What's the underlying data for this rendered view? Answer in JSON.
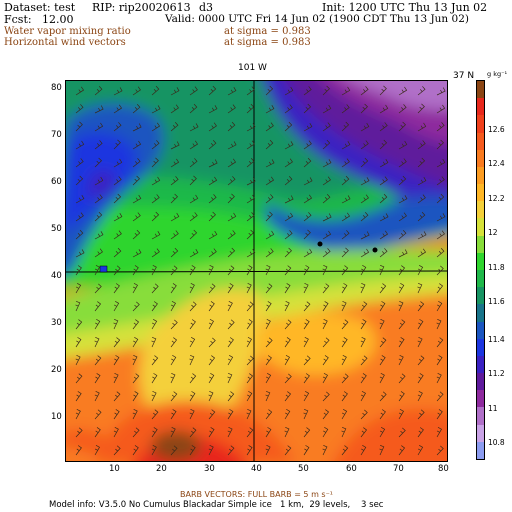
{
  "header": {
    "dataset": "Dataset: test",
    "rip": "RIP: rip20020613",
    "domain": "d3",
    "init": "Init: 1200 UTC Thu 13 Jun 02",
    "fcst_label": "Fcst:",
    "fcst_value": "12.00",
    "valid": "Valid: 0000 UTC Fri 14 Jun 02 (1900 CDT Thu 13 Jun 02)",
    "field1": "Water vapor mixing ratio",
    "field1_level": "at sigma = 0.983",
    "field2": "Horizontal wind vectors",
    "field2_level": "at sigma = 0.983"
  },
  "map": {
    "meridian_label": "101 W",
    "parallel_label": "37 N",
    "x_ticks": [
      "10",
      "20",
      "30",
      "40",
      "50",
      "60",
      "70",
      "80"
    ],
    "y_ticks": [
      "10",
      "20",
      "30",
      "40",
      "50",
      "60",
      "70",
      "80"
    ]
  },
  "colorbar": {
    "units": "g kg⁻¹",
    "labels": [
      "12.6",
      "12.4",
      "12.2",
      "12",
      "11.8",
      "11.6",
      "11.4",
      "11.2",
      "11",
      "10.8"
    ],
    "colors": [
      "#8b4513",
      "#e8281c",
      "#f0401c",
      "#f55a1e",
      "#f97b20",
      "#fc9c22",
      "#ffb726",
      "#f4d03a",
      "#d6e23a",
      "#88dd3a",
      "#2fd52e",
      "#1fb84a",
      "#179463",
      "#18748a",
      "#1a55c0",
      "#1c36e0",
      "#3a21c2",
      "#5e1a9c",
      "#8e2a9e",
      "#b070c8",
      "#c9a3e6",
      "#8c9cf0"
    ]
  },
  "footer": {
    "barb_vectors": "BARB VECTORS: FULL BARB = 5 m s⁻¹",
    "model_info": "Model info: V3.5.0 No Cumulus Blackadar Simple ice   1 km,  29 levels,    3 sec"
  }
}
